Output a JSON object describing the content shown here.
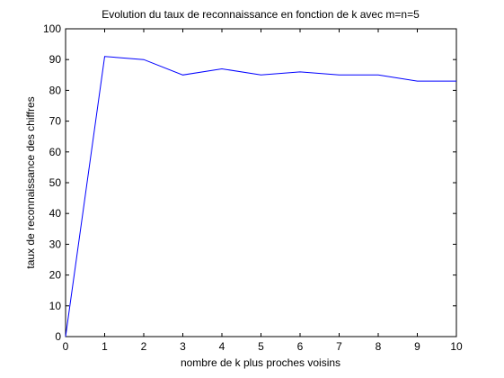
{
  "chart_data": {
    "type": "line",
    "title": "Evolution du taux de reconnaissance en fonction de k avec m=n=5",
    "xlabel": "nombre de k plus proches voisins",
    "ylabel": "taux de reconnaissance des chiffres",
    "xlim": [
      0,
      10
    ],
    "ylim": [
      0,
      100
    ],
    "xticks": [
      "0",
      "1",
      "2",
      "3",
      "4",
      "5",
      "6",
      "7",
      "8",
      "9",
      "10"
    ],
    "yticks": [
      "0",
      "10",
      "20",
      "30",
      "40",
      "50",
      "60",
      "70",
      "80",
      "90",
      "100"
    ],
    "grid": false,
    "series": [
      {
        "color": "#0000ff",
        "x": [
          0,
          1,
          2,
          3,
          4,
          5,
          6,
          7,
          8,
          9,
          10
        ],
        "y": [
          0,
          91,
          90,
          85,
          87,
          85,
          86,
          85,
          85,
          83,
          83
        ]
      }
    ]
  }
}
